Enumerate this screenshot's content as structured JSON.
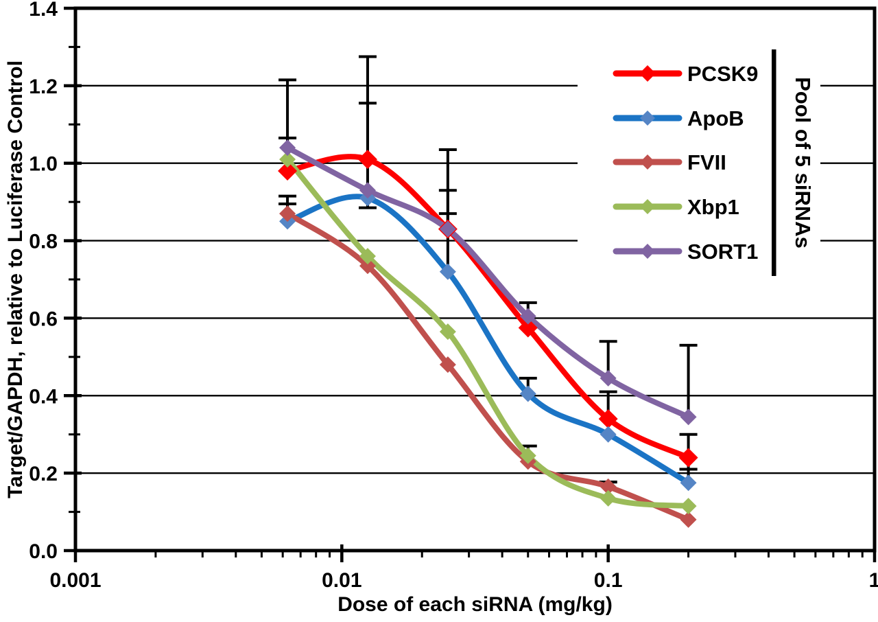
{
  "figure": {
    "background": "#ffffff",
    "description": "Dose-response curves of five siRNAs pooled, target mRNA knockdown vs dose"
  },
  "chart_data": {
    "type": "line",
    "x_scale": "log",
    "title": "",
    "xlabel": "Dose of each siRNA (mg/kg)",
    "ylabel": "Target/GAPDH,  relative to Luciferase Control",
    "xlim": [
      0.001,
      1
    ],
    "ylim": [
      0,
      1.4
    ],
    "y_major_step": 0.2,
    "y_minor_step": 0.1,
    "y_tick_labels": [
      "0.0",
      "0.2",
      "0.4",
      "0.6",
      "0.8",
      "1.0",
      "1.2",
      "1.4"
    ],
    "x_major_ticks": [
      0.001,
      0.01,
      0.1,
      1
    ],
    "x_tick_labels": [
      "0.001",
      "0.01",
      "0.1",
      "1"
    ],
    "grid": "horizontal",
    "x": [
      0.00625,
      0.0125,
      0.025,
      0.05,
      0.1,
      0.2
    ],
    "series": [
      {
        "name": "PCSK9",
        "color": "#fe0000",
        "marker_color": "#fe0000",
        "values": [
          0.98,
          1.01,
          0.83,
          0.575,
          0.34,
          0.24
        ],
        "err_up": [
          0.085,
          0.265,
          0.205,
          0,
          0.07,
          0.06
        ],
        "err_down": [
          0,
          0,
          0,
          0,
          0,
          0.03
        ]
      },
      {
        "name": "ApoB",
        "color": "#1b74c5",
        "marker_color": "#5585c5",
        "values": [
          0.85,
          0.91,
          0.72,
          0.405,
          0.3,
          0.175
        ],
        "err_up": [
          0.045,
          0,
          0.15,
          0.04,
          0,
          0.035
        ],
        "err_down": [
          0,
          0.025,
          0,
          0,
          0,
          0
        ]
      },
      {
        "name": "FVII",
        "color": "#c0504d",
        "marker_color": "#c0504d",
        "values": [
          0.87,
          0.735,
          0.48,
          0.23,
          0.165,
          0.08
        ],
        "err_up": [
          0.045,
          0,
          0,
          0,
          0.012,
          0
        ],
        "err_down": [
          0,
          0,
          0,
          0,
          0,
          0
        ]
      },
      {
        "name": "Xbp1",
        "color": "#9bbb59",
        "marker_color": "#9bbb59",
        "values": [
          1.01,
          0.76,
          0.565,
          0.245,
          0.135,
          0.115
        ],
        "err_up": [
          0.055,
          0,
          0,
          0.025,
          0.042,
          0
        ],
        "err_down": [
          0,
          0,
          0,
          0,
          0,
          0
        ]
      },
      {
        "name": "SORT1",
        "color": "#8064a2",
        "marker_color": "#8064a2",
        "values": [
          1.04,
          0.93,
          0.83,
          0.605,
          0.445,
          0.345
        ],
        "err_up": [
          0.175,
          0.225,
          0.1,
          0.035,
          0.095,
          0.185
        ],
        "err_down": [
          0,
          0,
          0,
          0,
          0,
          0
        ]
      }
    ],
    "legend": {
      "position": "top-right",
      "entries": [
        "PCSK9",
        "ApoB",
        "FVII",
        "Xbp1",
        "SORT1"
      ],
      "annotation": "Pool of 5 siRNAs"
    },
    "style": {
      "axis_color": "#000000",
      "grid_color": "#000000",
      "error_bar_color": "#000000"
    }
  }
}
